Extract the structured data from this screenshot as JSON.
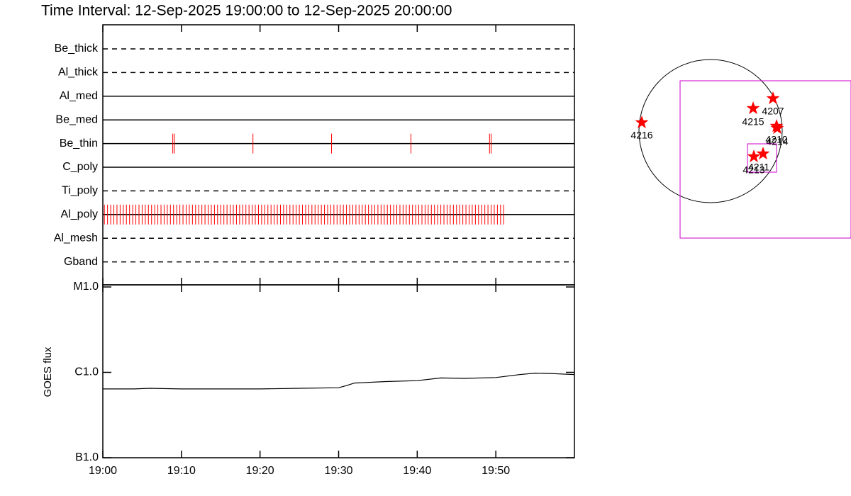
{
  "chart_data": [
    {
      "type": "timeline",
      "title": "Time Interval: 12-Sep-2025 19:00:00 to 12-Sep-2025 20:00:00",
      "color": "#ff0000",
      "xlim": [
        0,
        60
      ],
      "rows": [
        {
          "name": "Be_thick",
          "style": "dashed",
          "times": []
        },
        {
          "name": "Al_thick",
          "style": "dashed",
          "times": []
        },
        {
          "name": "Al_med",
          "style": "solid",
          "times": []
        },
        {
          "name": "Be_med",
          "style": "solid",
          "times": []
        },
        {
          "name": "Be_thin",
          "style": "solid",
          "times": [
            8.9,
            9.1,
            19.1,
            29.1,
            39.2,
            49.2,
            49.4
          ]
        },
        {
          "name": "C_poly",
          "style": "solid",
          "times": []
        },
        {
          "name": "Ti_poly",
          "style": "dashed",
          "times": []
        },
        {
          "name": "Al_poly",
          "style": "solid",
          "times": [
            0.2,
            0.6,
            1.0,
            1.4,
            1.8,
            2.2,
            2.6,
            3.0,
            3.4,
            3.8,
            4.2,
            4.6,
            5.0,
            5.4,
            5.8,
            6.2,
            6.6,
            7.0,
            7.4,
            7.8,
            8.2,
            8.6,
            9.0,
            9.4,
            9.8,
            10.2,
            10.6,
            11.0,
            11.4,
            11.8,
            12.2,
            12.6,
            13.0,
            13.4,
            13.8,
            14.2,
            14.6,
            15.0,
            15.4,
            15.8,
            16.2,
            16.6,
            17.0,
            17.4,
            17.8,
            18.2,
            18.6,
            19.0,
            19.4,
            19.8,
            20.2,
            20.6,
            21.0,
            21.4,
            21.8,
            22.2,
            22.6,
            23.0,
            23.4,
            23.8,
            24.2,
            24.6,
            25.0,
            25.4,
            25.8,
            26.2,
            26.6,
            27.0,
            27.4,
            27.8,
            28.2,
            28.6,
            29.0,
            29.4,
            29.8,
            30.2,
            30.6,
            31.0,
            31.4,
            31.8,
            32.2,
            32.6,
            33.0,
            33.4,
            33.8,
            34.2,
            34.6,
            35.0,
            35.4,
            35.8,
            36.2,
            36.6,
            37.0,
            37.4,
            37.8,
            38.2,
            38.6,
            39.0,
            39.4,
            39.8,
            40.2,
            40.6,
            41.0,
            41.4,
            41.8,
            42.2,
            42.6,
            43.0,
            43.4,
            43.8,
            44.2,
            44.6,
            45.0,
            45.4,
            45.8,
            46.2,
            46.6,
            47.0,
            47.4,
            47.8,
            48.2,
            48.6,
            49.0,
            49.4,
            49.8,
            50.2,
            50.6,
            51.0
          ]
        },
        {
          "name": "Al_mesh",
          "style": "dashed",
          "times": []
        },
        {
          "name": "Gband",
          "style": "dashed",
          "times": []
        }
      ]
    },
    {
      "type": "line",
      "ylabel": "GOES flux",
      "color": "#000000",
      "log_scale": true,
      "xlim": [
        0,
        60
      ],
      "xticks": [
        {
          "value": 0,
          "label": "19:00"
        },
        {
          "value": 10,
          "label": "19:10"
        },
        {
          "value": 20,
          "label": "19:20"
        },
        {
          "value": 30,
          "label": "19:30"
        },
        {
          "value": 40,
          "label": "19:40"
        },
        {
          "value": 50,
          "label": "19:50"
        }
      ],
      "ylim": [
        1e-07,
        1e-05
      ],
      "yticks": [
        {
          "value": 1e-05,
          "label": "M1.0"
        },
        {
          "value": 1e-06,
          "label": "C1.0"
        },
        {
          "value": 1e-07,
          "label": "B1.0"
        }
      ],
      "x": [
        0,
        4,
        6,
        10,
        20,
        25,
        30,
        31,
        32,
        36,
        40,
        43,
        46,
        50,
        53,
        55,
        57,
        60
      ],
      "values": [
        6.4e-07,
        6.4e-07,
        6.5e-07,
        6.4e-07,
        6.4e-07,
        6.5e-07,
        6.6e-07,
        7e-07,
        7.5e-07,
        7.8e-07,
        8e-07,
        8.6e-07,
        8.5e-07,
        8.7e-07,
        9.4e-07,
        9.8e-07,
        9.7e-07,
        9.4e-07
      ]
    }
  ],
  "map": {
    "regions": [
      "4216",
      "4215",
      "4207",
      "4210",
      "4214",
      "4213",
      "4211"
    ]
  }
}
